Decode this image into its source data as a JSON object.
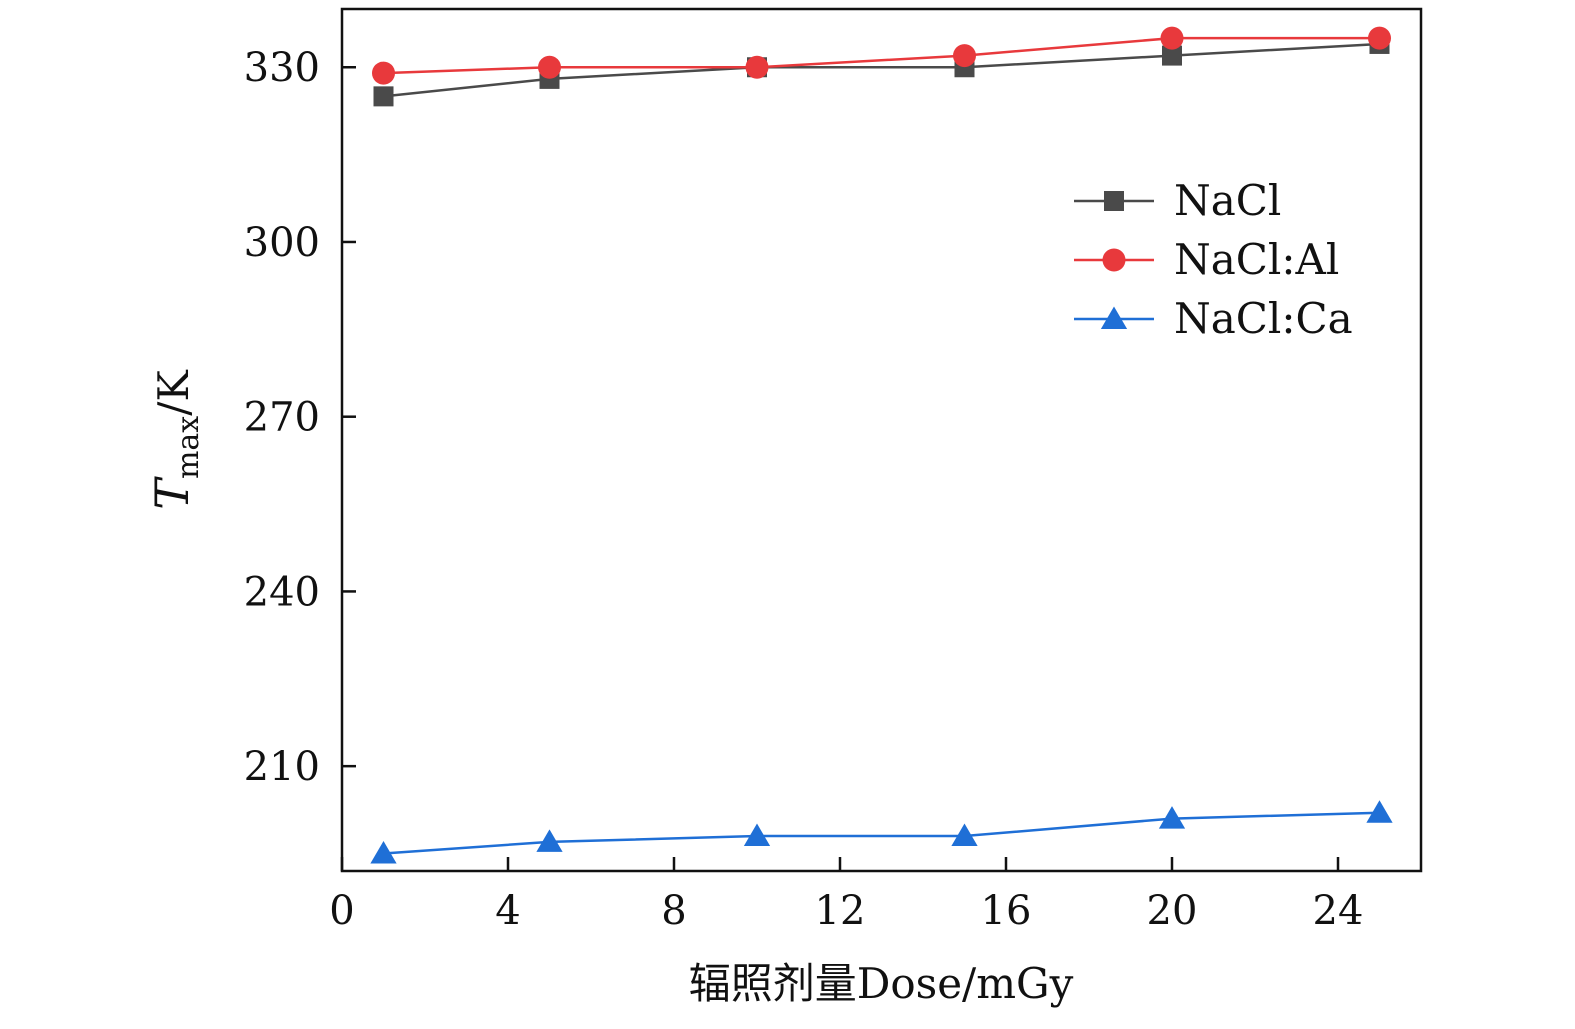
{
  "chart_data": {
    "type": "line",
    "xlabel": "辐照剂量Dose/mGy",
    "ylabel": {
      "symbol": "T",
      "subscript": "max",
      "unit": "/K"
    },
    "xlim": [
      0,
      26
    ],
    "ylim": [
      192,
      340
    ],
    "xticks": [
      0,
      4,
      8,
      12,
      16,
      20,
      24
    ],
    "yticks": [
      210,
      240,
      270,
      300,
      330
    ],
    "grid": false,
    "legend_position": "top-right",
    "x": [
      1,
      5,
      10,
      15,
      20,
      25
    ],
    "series": [
      {
        "name": "NaCl",
        "marker": "square",
        "color": "#4a4a4a",
        "values": [
          325,
          328,
          330,
          330,
          332,
          334
        ]
      },
      {
        "name": "NaCl:Al",
        "marker": "circle",
        "color": "#e8393c",
        "values": [
          329,
          330,
          330,
          332,
          335,
          335
        ]
      },
      {
        "name": "NaCl:Ca",
        "marker": "triangle",
        "color": "#1f6fd6",
        "values": [
          195,
          197,
          198,
          198,
          201,
          202
        ]
      }
    ]
  }
}
